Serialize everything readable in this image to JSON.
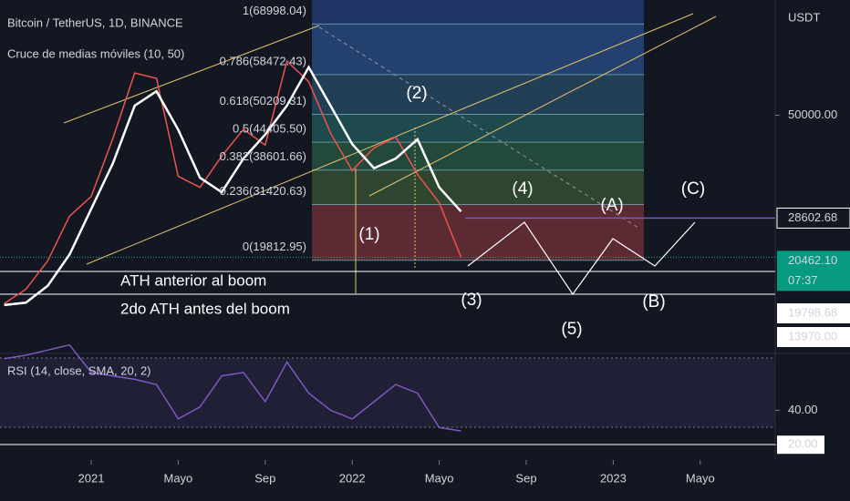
{
  "header": {
    "title": "Bitcoin / TetherUS, 1D, BINANCE",
    "indicator": "Cruce de medias móviles (10, 50)",
    "currency": "USDT"
  },
  "chart_data": [
    {
      "type": "line",
      "x": [
        "2020-09",
        "2020-10",
        "2020-11",
        "2020-12",
        "2021-01",
        "2021-02",
        "2021-03",
        "2021-04",
        "2021-05",
        "2021-06",
        "2021-07",
        "2021-08",
        "2021-09",
        "2021-10",
        "2021-11",
        "2021-12",
        "2022-01",
        "2022-02",
        "2022-03",
        "2022-04",
        "2022-05",
        "2022-06"
      ],
      "series": [
        {
          "color": "#ef5350",
          "values": [
            10800,
            13800,
            19700,
            29000,
            33100,
            45200,
            58800,
            57700,
            37300,
            35000,
            41500,
            47100,
            43800,
            61300,
            57000,
            46300,
            38500,
            43200,
            45500,
            37700,
            31800,
            20462.1
          ]
        },
        {
          "color": "#ffffff",
          "values": [
            10500,
            11000,
            14500,
            21000,
            30500,
            40000,
            52000,
            55000,
            47000,
            37000,
            34000,
            41000,
            46000,
            52000,
            60000,
            52000,
            44000,
            39000,
            41000,
            45000,
            35000,
            30000
          ]
        }
      ],
      "ylim": [
        1000,
        74000
      ],
      "yticks": [
        {
          "value": 50000,
          "label": "50000.00"
        }
      ],
      "xticks": [
        {
          "value": "2021-01",
          "label": "2021"
        },
        {
          "value": "2021-05",
          "label": "Mayo"
        },
        {
          "value": "2021-09",
          "label": "Sep"
        },
        {
          "value": "2022-01",
          "label": "2022"
        },
        {
          "value": "2022-05",
          "label": "Mayo"
        },
        {
          "value": "2022-09",
          "label": "Sep"
        },
        {
          "value": "2023-01",
          "label": "2023"
        },
        {
          "value": "2023-05",
          "label": "Mayo"
        }
      ],
      "price_tags": [
        {
          "value": 28602.68,
          "label": "28602.68"
        },
        {
          "value": 20462.1,
          "label": "20462.10"
        },
        {
          "value": 19798.68,
          "label": "19798.68"
        },
        {
          "value": 13970.0,
          "label": "13970.00"
        }
      ],
      "countdown": "07:37",
      "fib_levels": [
        {
          "value": 68998.04,
          "label": "1(68998.04)"
        },
        {
          "value": 58472.43,
          "label": "0.786(58472.43)"
        },
        {
          "value": 50209.31,
          "label": "0.618(50209.31)"
        },
        {
          "value": 44405.5,
          "label": "0.5(44405.50)"
        },
        {
          "value": 38601.66,
          "label": "0.382(38601.66)"
        },
        {
          "value": 31420.63,
          "label": "0.236(31420.63)"
        },
        {
          "value": 19812.95,
          "label": "0(19812.95)"
        }
      ],
      "annotations": [
        "ATH anterior al boom",
        "2do ATH antes del boom",
        "(1)",
        "(2)",
        "(3)",
        "(4)",
        "(5)",
        "(A)",
        "(B)",
        "(C)"
      ]
    },
    {
      "type": "line",
      "title": "RSI (14, close, SMA, 20, 2)",
      "x": [
        "2020-09",
        "2020-10",
        "2020-11",
        "2020-12",
        "2021-01",
        "2021-02",
        "2021-03",
        "2021-04",
        "2021-05",
        "2021-06",
        "2021-07",
        "2021-08",
        "2021-09",
        "2021-10",
        "2021-11",
        "2021-12",
        "2022-01",
        "2022-02",
        "2022-03",
        "2022-04",
        "2022-05",
        "2022-06"
      ],
      "series": [
        {
          "color": "#7e57c2",
          "values": [
            70,
            72,
            75,
            78,
            62,
            60,
            58,
            55,
            35,
            42,
            60,
            62,
            45,
            68,
            50,
            40,
            35,
            45,
            55,
            50,
            30,
            28
          ]
        }
      ],
      "ylim": [
        18,
        72
      ],
      "yticks": [
        {
          "value": 40,
          "label": "40.00"
        },
        {
          "value": 20,
          "label": "20.00"
        }
      ]
    }
  ]
}
